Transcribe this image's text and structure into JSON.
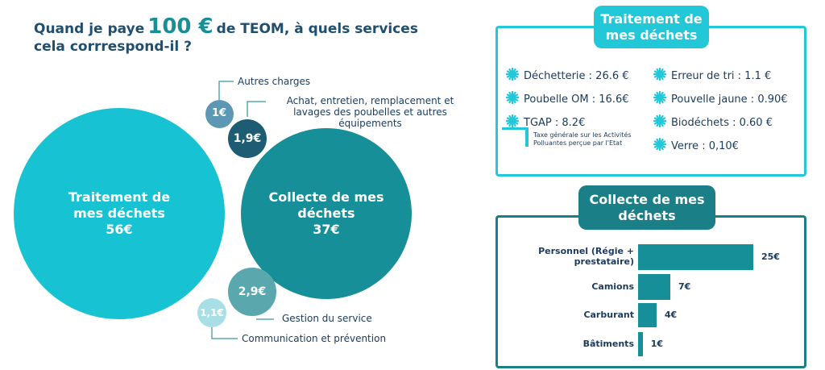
{
  "header": {
    "title_before": "Quand je paye",
    "amount": "100 €",
    "title_after": "de TEOM, à quels services",
    "title_line2": "cela corrrespond-il ?"
  },
  "chart_data": [
    {
      "type": "bubble",
      "categories": [
        "Traitement de mes déchets",
        "Collecte de mes déchets",
        "Gestion du service",
        "Achat, entretien, remplacement et lavages des poubelles et autres équipements",
        "Communication et prévention",
        "Autres charges"
      ],
      "values": [
        56,
        37,
        2.9,
        1.9,
        1.1,
        1
      ],
      "value_labels": [
        "56€",
        "37€",
        "2,9€",
        "1,9€",
        "1,1€",
        "1€"
      ],
      "colors": [
        "#17c3d3",
        "#178f98",
        "#5aa8ae",
        "#1d5c72",
        "#a8dfe6",
        "#5c97b4"
      ]
    },
    {
      "type": "bar",
      "title": "Collecte de mes déchets",
      "categories": [
        "Personnel  (Régie + prestataire)",
        "Camions",
        "Carburant",
        "Bâtiments"
      ],
      "values": [
        25,
        7,
        4,
        1
      ],
      "value_labels": [
        "25€",
        "7€",
        "4€",
        "1€"
      ],
      "color": "#178f98"
    }
  ],
  "treatment_box": {
    "title": "Traitement de mes déchets",
    "left_items": [
      "Déchetterie : 26.6 €",
      "Poubelle OM : 16.6€",
      "TGAP : 8.2€"
    ],
    "right_items": [
      "Erreur de tri : 1.1 €",
      "Pouvelle jaune : 0.90€",
      "Biodéchets : 0.60 €",
      "Verre : 0,10€"
    ],
    "note": "Taxe générale sur les Activités Polluantes perçue par l'Etat"
  }
}
